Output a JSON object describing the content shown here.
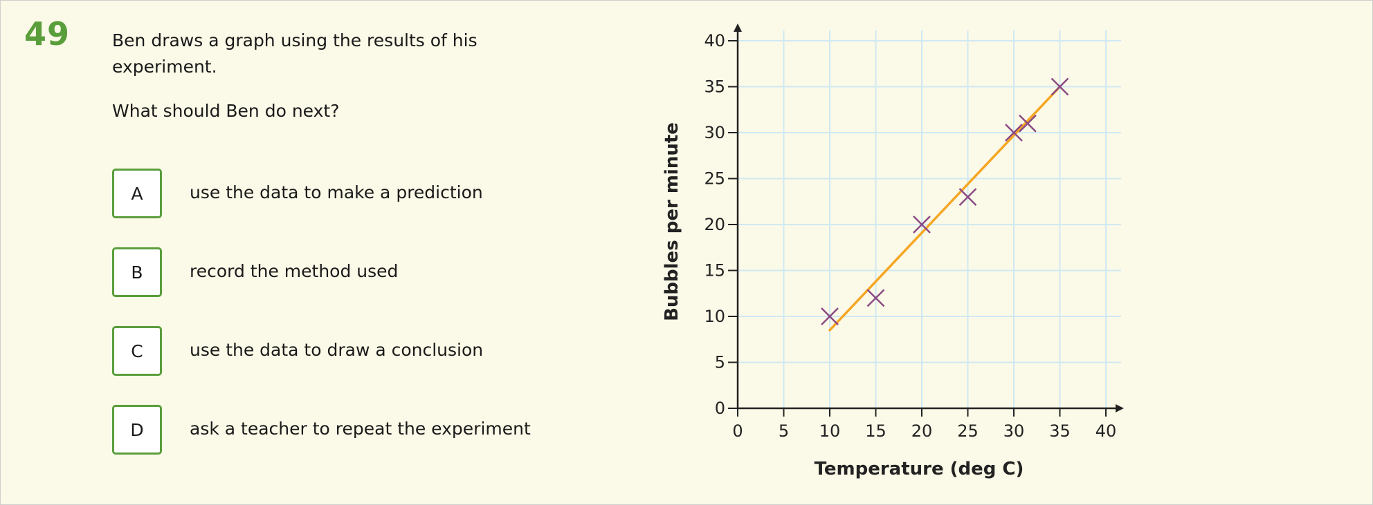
{
  "question": {
    "number": "49",
    "stem": "Ben draws a graph using the results of his experiment.",
    "ask": "What should Ben do next?"
  },
  "options": [
    {
      "letter": "A",
      "text": "use the data to make a prediction"
    },
    {
      "letter": "B",
      "text": "record the method used"
    },
    {
      "letter": "C",
      "text": "use the data to draw a conclusion"
    },
    {
      "letter": "D",
      "text": "ask a teacher to repeat the experiment"
    }
  ],
  "colors": {
    "accent_green": "#5a9e3c",
    "grid": "#cfe9f3",
    "marker": "#8a4a85",
    "line": "#f5a623",
    "background": "#fbf9e7"
  },
  "chart_data": {
    "type": "scatter",
    "xlabel": "Temperature (deg C)",
    "ylabel": "Bubbles per minute",
    "xlim": [
      0,
      40
    ],
    "ylim": [
      0,
      40
    ],
    "xticks": [
      0,
      5,
      10,
      15,
      20,
      25,
      30,
      35,
      40
    ],
    "yticks": [
      0,
      5,
      10,
      15,
      20,
      25,
      30,
      35,
      40
    ],
    "grid": true,
    "series": [
      {
        "points": [
          {
            "x": 10,
            "y": 10
          },
          {
            "x": 15,
            "y": 12
          },
          {
            "x": 20,
            "y": 20
          },
          {
            "x": 25,
            "y": 23
          },
          {
            "x": 30,
            "y": 30
          },
          {
            "x": 31.5,
            "y": 31
          },
          {
            "x": 35,
            "y": 35
          }
        ]
      }
    ],
    "trend_line": {
      "x1": 10,
      "y1": 8.5,
      "x2": 35,
      "y2": 35
    }
  }
}
